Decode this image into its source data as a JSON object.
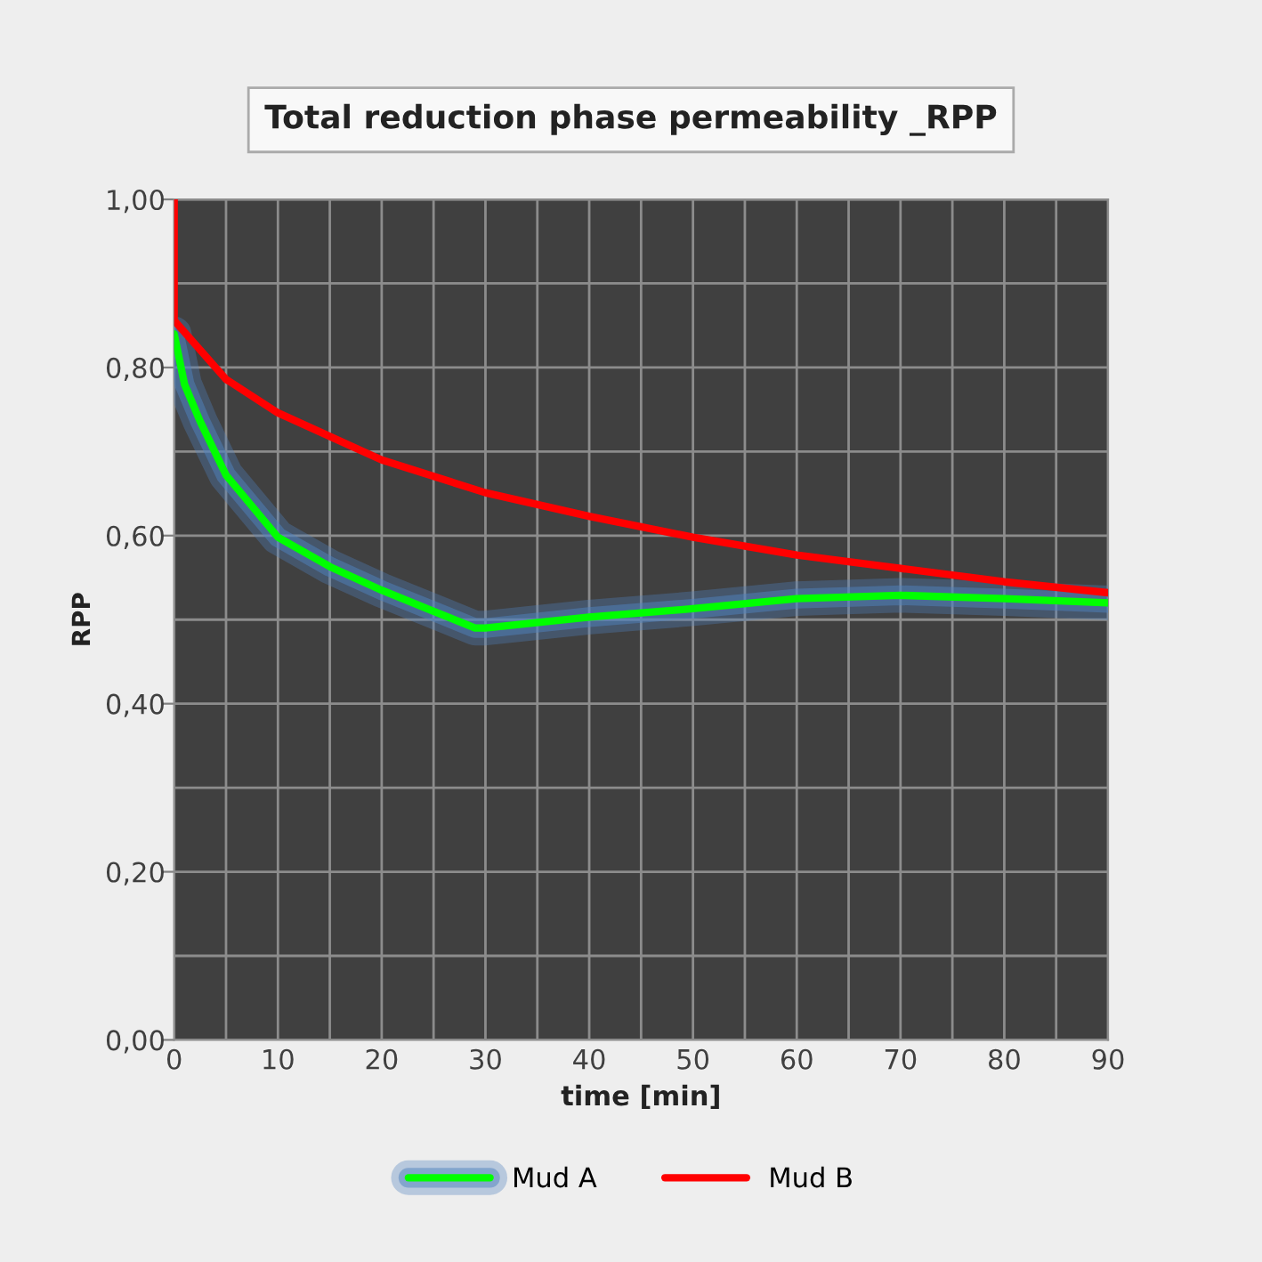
{
  "chart_data": {
    "type": "line",
    "title": "Total reduction phase permeability _RPP",
    "xlabel": "time [min]",
    "ylabel": "RPP",
    "xlim": [
      0,
      90
    ],
    "ylim": [
      0,
      1
    ],
    "xticks": [
      0,
      {
        "value": 5,
        "label": null
      },
      10,
      {
        "value": 15,
        "label": null
      },
      20,
      {
        "value": 25,
        "label": null
      },
      30,
      {
        "value": 35,
        "label": null
      },
      40,
      {
        "value": 45,
        "label": null
      },
      50,
      {
        "value": 55,
        "label": null
      },
      60,
      {
        "value": 65,
        "label": null
      },
      70,
      {
        "value": 75,
        "label": null
      },
      80,
      {
        "value": 85,
        "label": null
      },
      90
    ],
    "yticks": [
      {
        "value": 0,
        "label": "0,00"
      },
      {
        "value": 0.1,
        "label": null
      },
      {
        "value": 0.2,
        "label": "0,20"
      },
      {
        "value": 0.3,
        "label": null
      },
      {
        "value": 0.4,
        "label": "0,40"
      },
      {
        "value": 0.5,
        "label": null
      },
      {
        "value": 0.6,
        "label": "0,60"
      },
      {
        "value": 0.7,
        "label": null
      },
      {
        "value": 0.8,
        "label": "0,80"
      },
      {
        "value": 0.9,
        "label": null
      },
      {
        "value": 1,
        "label": "1,00"
      }
    ],
    "grid": true,
    "legend": "bottom",
    "marker": "none",
    "line_style": "solid",
    "series": [
      {
        "name": "Mud A",
        "color": "#00ff00",
        "x": [
          0,
          1,
          2.5,
          5,
          10,
          15,
          20,
          25,
          29,
          30,
          40,
          50,
          60,
          70,
          80,
          90
        ],
        "values": [
          0.84,
          0.78,
          0.736,
          0.672,
          0.598,
          0.563,
          0.535,
          0.51,
          0.49,
          0.49,
          0.503,
          0.513,
          0.525,
          0.529,
          0.525,
          0.52
        ]
      },
      {
        "name": "Mud B",
        "color": "#ff0000",
        "x": [
          0,
          0,
          5,
          10,
          20,
          30,
          40,
          50,
          60,
          70,
          80,
          90
        ],
        "values": [
          1.0,
          0.856,
          0.786,
          0.746,
          0.69,
          0.651,
          0.623,
          0.598,
          0.577,
          0.561,
          0.545,
          0.532
        ]
      }
    ]
  }
}
